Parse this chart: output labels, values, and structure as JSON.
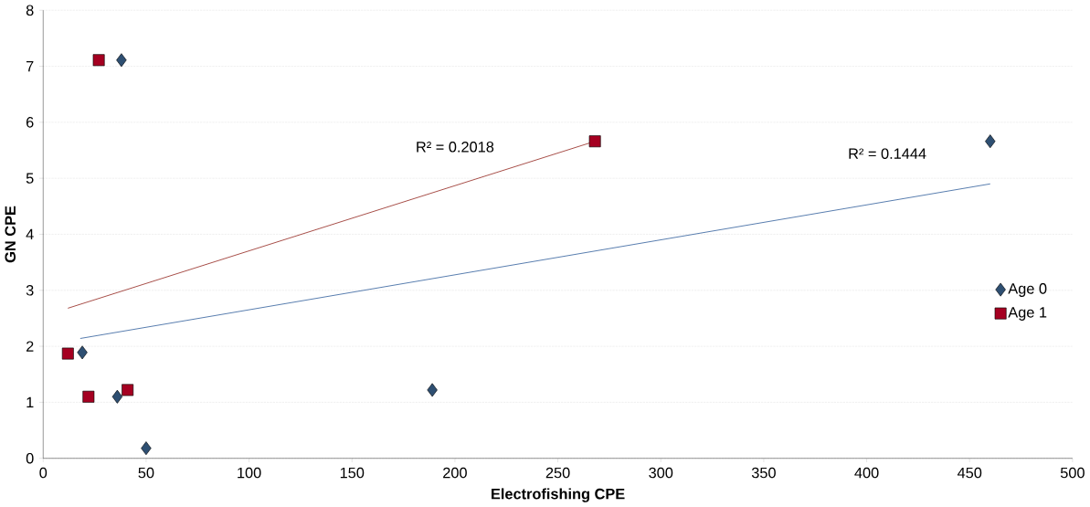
{
  "chart_data": {
    "type": "scatter",
    "xlabel": "Electrofishing CPE",
    "ylabel": "GN CPE",
    "xlim": [
      0,
      500
    ],
    "xticks": [
      0,
      50,
      100,
      150,
      200,
      250,
      300,
      350,
      400,
      450,
      500
    ],
    "ylim": [
      0,
      8
    ],
    "yticks": [
      0,
      1,
      2,
      3,
      4,
      5,
      6,
      7,
      8
    ],
    "grid": "y",
    "legend": "right",
    "series": [
      {
        "name": "Age 0",
        "marker": "diamond",
        "color": "#2e4f72",
        "x": [
          38,
          460,
          19,
          36,
          50,
          189
        ],
        "values": [
          7.11,
          5.66,
          1.89,
          1.1,
          0.18,
          1.22
        ]
      },
      {
        "name": "Age 1",
        "marker": "square",
        "color": "#a50021",
        "x": [
          27,
          268,
          12,
          22,
          41
        ],
        "values": [
          7.11,
          5.66,
          1.87,
          1.1,
          1.22
        ]
      },
      {
        "type": "line",
        "marker": "none",
        "color": "#4a72a8",
        "x": [
          18,
          460
        ],
        "values": [
          2.14,
          4.9
        ]
      },
      {
        "type": "line",
        "marker": "none",
        "color": "#a0403a",
        "x": [
          12,
          268
        ],
        "values": [
          2.68,
          5.66
        ]
      }
    ],
    "annotations": [
      "R² = 0.2018",
      "R² = 0.1444"
    ]
  }
}
